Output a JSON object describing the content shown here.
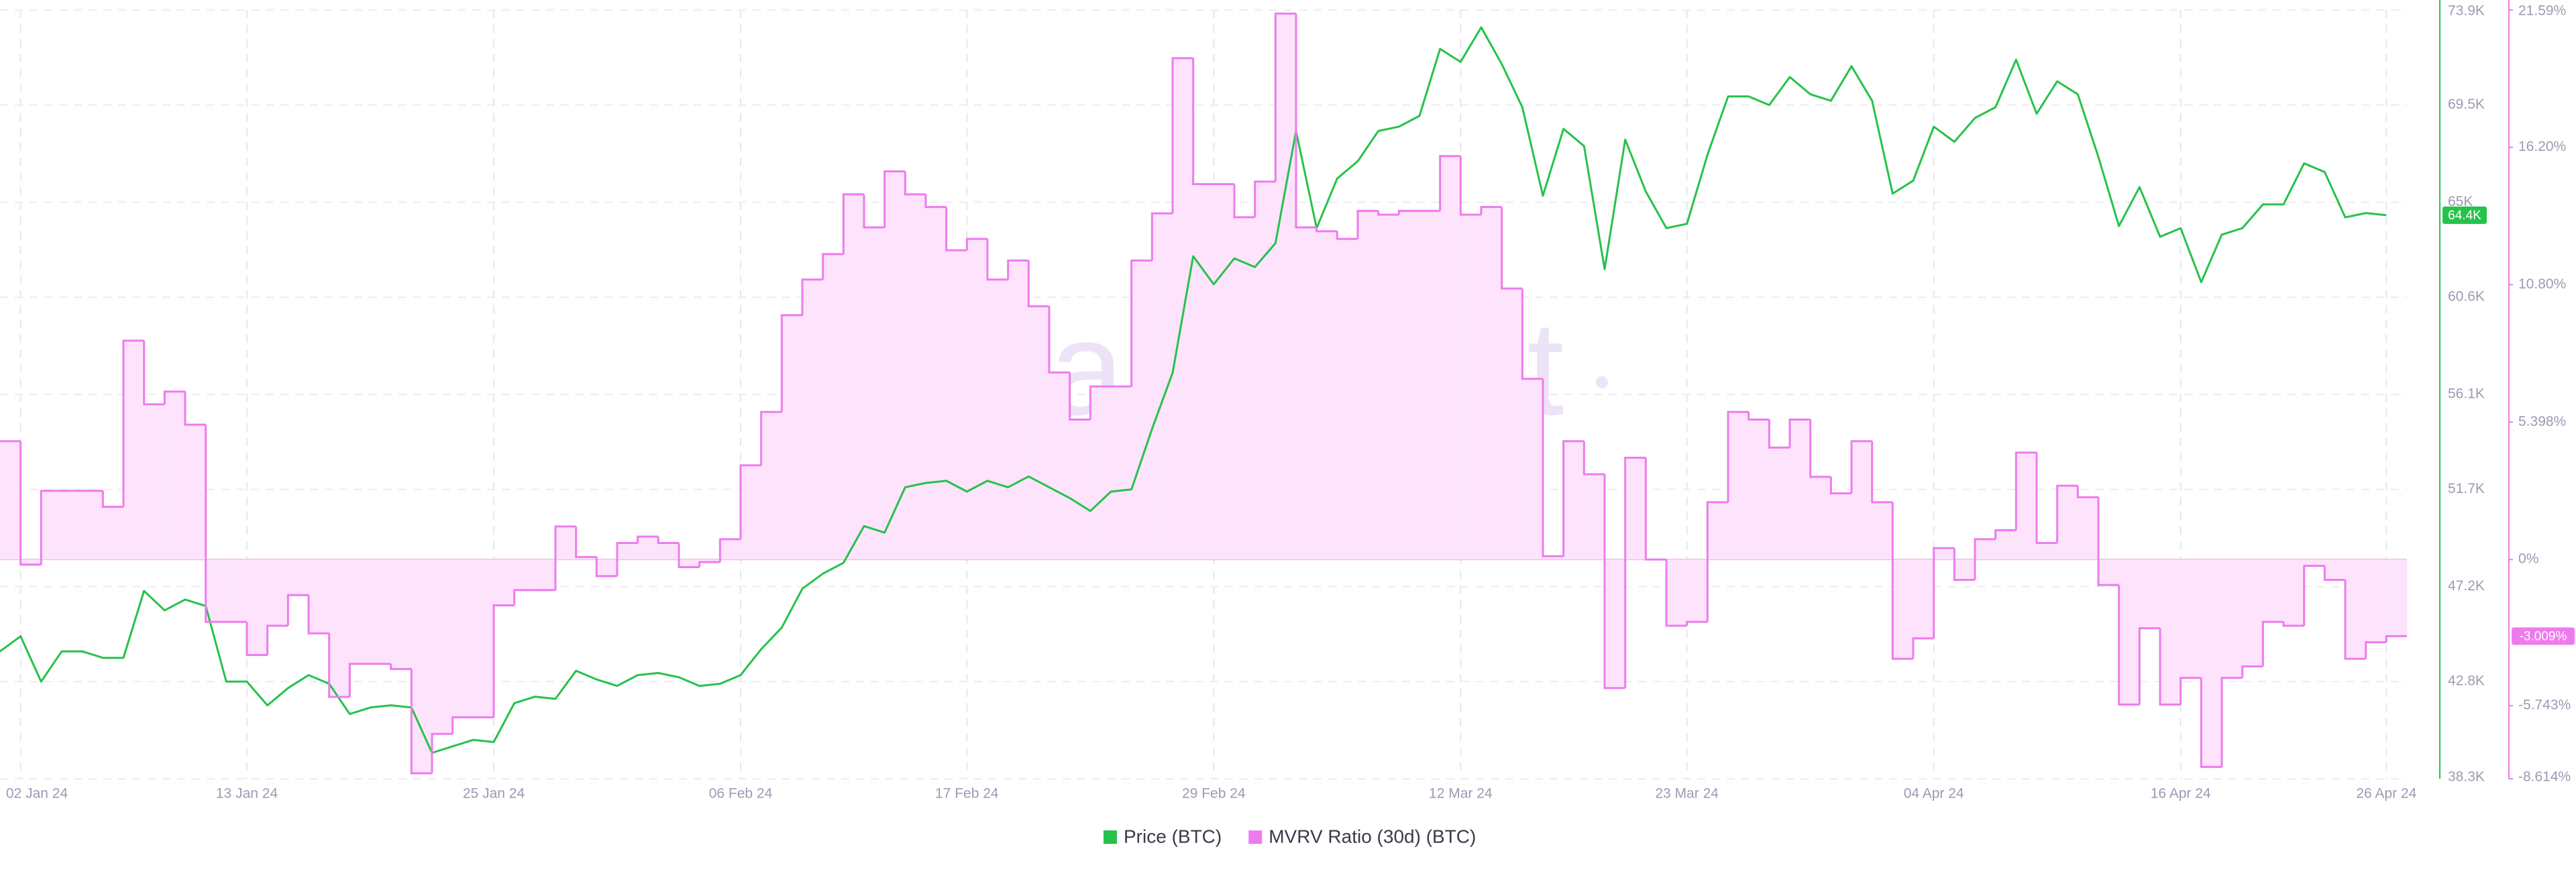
{
  "chart_data": {
    "type": "line",
    "watermark": "santiment",
    "x": [
      "2024-01-01",
      "2024-01-02",
      "2024-01-03",
      "2024-01-04",
      "2024-01-05",
      "2024-01-06",
      "2024-01-07",
      "2024-01-08",
      "2024-01-09",
      "2024-01-10",
      "2024-01-11",
      "2024-01-12",
      "2024-01-13",
      "2024-01-14",
      "2024-01-15",
      "2024-01-16",
      "2024-01-17",
      "2024-01-18",
      "2024-01-19",
      "2024-01-20",
      "2024-01-21",
      "2024-01-22",
      "2024-01-23",
      "2024-01-24",
      "2024-01-25",
      "2024-01-26",
      "2024-01-27",
      "2024-01-28",
      "2024-01-29",
      "2024-01-30",
      "2024-01-31",
      "2024-02-01",
      "2024-02-02",
      "2024-02-03",
      "2024-02-04",
      "2024-02-05",
      "2024-02-06",
      "2024-02-07",
      "2024-02-08",
      "2024-02-09",
      "2024-02-10",
      "2024-02-11",
      "2024-02-12",
      "2024-02-13",
      "2024-02-14",
      "2024-02-15",
      "2024-02-16",
      "2024-02-17",
      "2024-02-18",
      "2024-02-19",
      "2024-02-20",
      "2024-02-21",
      "2024-02-22",
      "2024-02-23",
      "2024-02-24",
      "2024-02-25",
      "2024-02-26",
      "2024-02-27",
      "2024-02-28",
      "2024-02-29",
      "2024-03-01",
      "2024-03-02",
      "2024-03-03",
      "2024-03-04",
      "2024-03-05",
      "2024-03-06",
      "2024-03-07",
      "2024-03-08",
      "2024-03-09",
      "2024-03-10",
      "2024-03-11",
      "2024-03-12",
      "2024-03-13",
      "2024-03-14",
      "2024-03-15",
      "2024-03-16",
      "2024-03-17",
      "2024-03-18",
      "2024-03-19",
      "2024-03-20",
      "2024-03-21",
      "2024-03-22",
      "2024-03-23",
      "2024-03-24",
      "2024-03-25",
      "2024-03-26",
      "2024-03-27",
      "2024-03-28",
      "2024-03-29",
      "2024-03-30",
      "2024-03-31",
      "2024-04-01",
      "2024-04-02",
      "2024-04-03",
      "2024-04-04",
      "2024-04-05",
      "2024-04-06",
      "2024-04-07",
      "2024-04-08",
      "2024-04-09",
      "2024-04-10",
      "2024-04-11",
      "2024-04-12",
      "2024-04-13",
      "2024-04-14",
      "2024-04-15",
      "2024-04-16",
      "2024-04-17",
      "2024-04-18",
      "2024-04-19",
      "2024-04-20",
      "2024-04-21",
      "2024-04-22",
      "2024-04-23",
      "2024-04-24",
      "2024-04-25",
      "2024-04-26"
    ],
    "xlim": [
      "2024-01-01",
      "2024-04-27"
    ],
    "xticks": [
      {
        "value": "2024-01-02",
        "label": "02 Jan 24"
      },
      {
        "value": "2024-01-13",
        "label": "13 Jan 24"
      },
      {
        "value": "2024-01-25",
        "label": "25 Jan 24"
      },
      {
        "value": "2024-02-06",
        "label": "06 Feb 24"
      },
      {
        "value": "2024-02-17",
        "label": "17 Feb 24"
      },
      {
        "value": "2024-02-29",
        "label": "29 Feb 24"
      },
      {
        "value": "2024-03-12",
        "label": "12 Mar 24"
      },
      {
        "value": "2024-03-23",
        "label": "23 Mar 24"
      },
      {
        "value": "2024-04-04",
        "label": "04 Apr 24"
      },
      {
        "value": "2024-04-16",
        "label": "16 Apr 24"
      },
      {
        "value": "2024-04-26",
        "label": "26 Apr 24"
      }
    ],
    "ylim": [
      38300,
      73900
    ],
    "yticks": [
      {
        "value": 73900,
        "label": "73.9K"
      },
      {
        "value": 69500,
        "label": "69.5K"
      },
      {
        "value": 65000,
        "label": "65K"
      },
      {
        "value": 60600,
        "label": "60.6K"
      },
      {
        "value": 56100,
        "label": "56.1K"
      },
      {
        "value": 51700,
        "label": "51.7K"
      },
      {
        "value": 47200,
        "label": "47.2K"
      },
      {
        "value": 42800,
        "label": "42.8K"
      },
      {
        "value": 38300,
        "label": "38.3K"
      }
    ],
    "y2lim": [
      -8.614,
      21.59
    ],
    "y2ticks": [
      {
        "value": 21.59,
        "label": "21.59%"
      },
      {
        "value": 16.2,
        "label": "16.20%"
      },
      {
        "value": 10.8,
        "label": "10.80%"
      },
      {
        "value": 5.398,
        "label": "5.398%"
      },
      {
        "value": 0,
        "label": "0%"
      },
      {
        "value": -5.743,
        "label": "-5.743%"
      },
      {
        "value": -8.614,
        "label": "-8.614%"
      }
    ],
    "grid": true,
    "legend": "bottom",
    "series": [
      {
        "name": "Price (BTC)",
        "color": "#26c24a",
        "last_label": "64.4K",
        "values": [
          44200,
          44900,
          42800,
          44200,
          44200,
          43900,
          43900,
          47000,
          46100,
          46600,
          46300,
          42800,
          42800,
          41700,
          42500,
          43100,
          42700,
          41300,
          41600,
          41700,
          41600,
          39500,
          39800,
          40100,
          40000,
          41800,
          42100,
          42000,
          43300,
          42900,
          42600,
          43100,
          43200,
          43000,
          42600,
          42700,
          43100,
          44300,
          45300,
          47100,
          47800,
          48300,
          50000,
          49700,
          51800,
          52000,
          52100,
          51600,
          52100,
          51800,
          52300,
          51800,
          51300,
          50700,
          51600,
          51700,
          54500,
          57100,
          62500,
          61200,
          62400,
          62000,
          63100,
          68300,
          63800,
          66100,
          66900,
          68300,
          68500,
          69000,
          72100,
          71500,
          73100,
          71400,
          69400,
          65300,
          68400,
          67600,
          61900,
          67900,
          65500,
          63800,
          64000,
          67200,
          69900,
          69900,
          69500,
          70800,
          70000,
          69700,
          71300,
          69700,
          65400,
          66000,
          68500,
          67800,
          68900,
          69400,
          71600,
          69100,
          70600,
          70000,
          67100,
          63900,
          65700,
          63400,
          63800,
          61300,
          63500,
          63800,
          64900,
          64900,
          66800,
          66400,
          64300,
          64500,
          64400
        ]
      },
      {
        "name": "MVRV Ratio (30d) (BTC)",
        "color": "#ee7bee",
        "axis": "y2",
        "step": true,
        "last_label": "-3.009%",
        "values": [
          4.65,
          -0.2,
          2.7,
          2.7,
          2.7,
          2.07,
          8.6,
          6.1,
          6.6,
          5.3,
          -2.45,
          -2.45,
          -3.75,
          -2.6,
          -1.4,
          -2.9,
          -5.4,
          -4.1,
          -4.1,
          -4.3,
          -8.4,
          -6.85,
          -6.2,
          -6.2,
          -1.8,
          -1.2,
          -1.2,
          1.3,
          0.1,
          -0.65,
          0.65,
          0.9,
          0.65,
          -0.3,
          -0.1,
          0.8,
          3.7,
          5.8,
          9.6,
          11.0,
          12.0,
          14.35,
          13.05,
          15.25,
          14.35,
          13.85,
          12.15,
          12.6,
          11.0,
          11.75,
          9.95,
          7.35,
          5.5,
          6.8,
          6.8,
          11.75,
          13.6,
          19.7,
          14.75,
          14.75,
          13.45,
          14.85,
          21.45,
          13.05,
          12.9,
          12.6,
          13.7,
          13.55,
          13.7,
          13.7,
          15.85,
          13.55,
          13.85,
          10.65,
          7.1,
          0.13,
          4.65,
          3.35,
          -5.05,
          4.0,
          0,
          -2.6,
          -2.45,
          2.25,
          5.8,
          5.5,
          4.4,
          5.5,
          3.25,
          2.6,
          4.65,
          2.25,
          -3.9,
          -3.1,
          0.45,
          -0.8,
          0.8,
          1.15,
          4.2,
          0.65,
          2.9,
          2.45,
          -1.0,
          -5.7,
          -2.7,
          -5.7,
          -4.65,
          -8.15,
          -4.65,
          -4.2,
          -2.45,
          -2.6,
          -0.25,
          -0.8,
          -3.9,
          -3.25,
          -3.009
        ]
      }
    ]
  }
}
